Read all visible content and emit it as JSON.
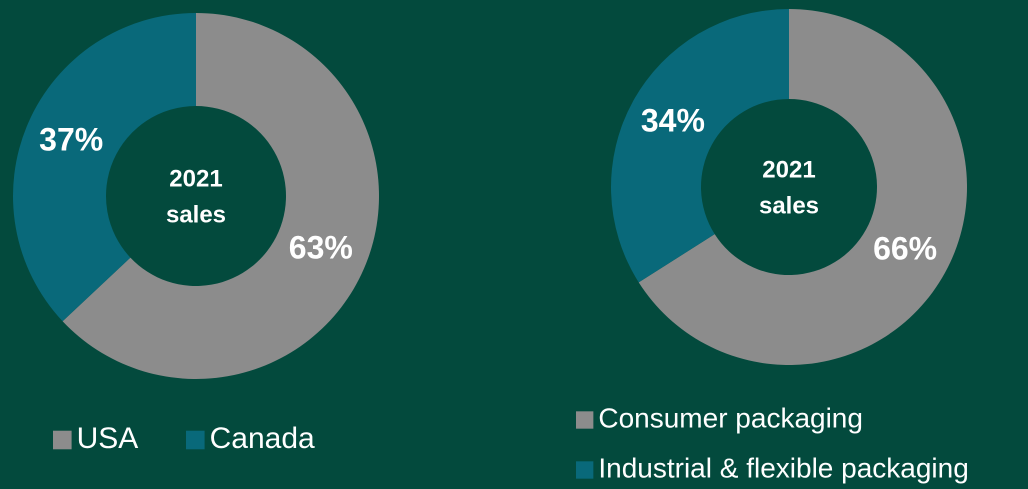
{
  "chart_data": [
    {
      "type": "donut",
      "center_text": [
        "2021",
        "sales"
      ],
      "categories": [
        "USA",
        "Canada"
      ],
      "values": [
        63,
        37
      ],
      "value_labels": [
        "63%",
        "37%"
      ],
      "colors": [
        "#8c8c8c",
        "#09697a"
      ],
      "legend": "bottom"
    },
    {
      "type": "donut",
      "center_text": [
        "2021",
        "sales"
      ],
      "categories": [
        "Consumer packaging",
        "Industrial & flexible packaging"
      ],
      "values": [
        66,
        34
      ],
      "value_labels": [
        "66%",
        "34%"
      ],
      "colors": [
        "#8c8c8c",
        "#09697a"
      ],
      "legend": "bottom"
    }
  ]
}
